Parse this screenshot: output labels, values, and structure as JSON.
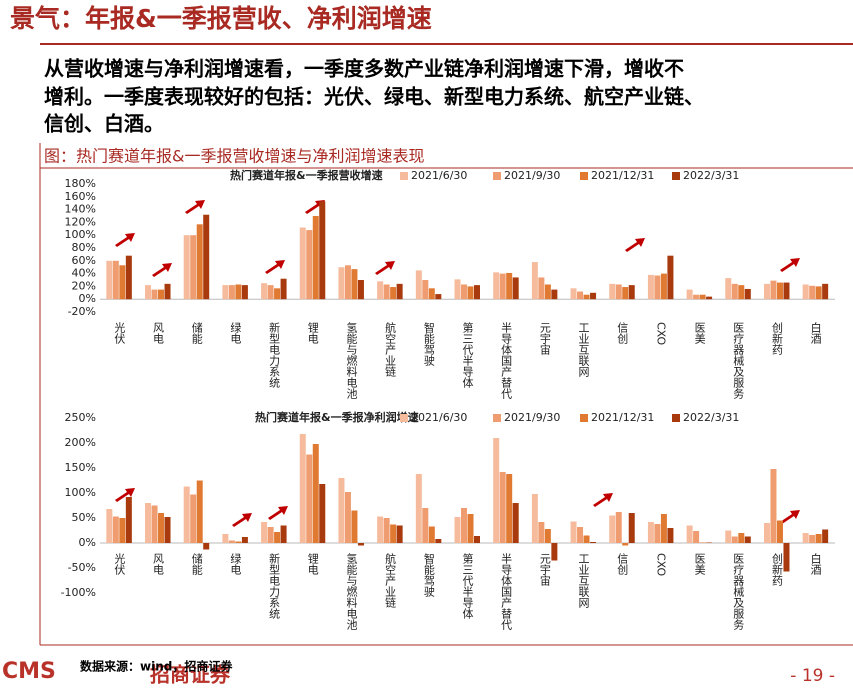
{
  "header": {
    "title": "景气：年报&一季报营收、净利润增速"
  },
  "body": {
    "lines": [
      "从营收增速与净利润增速看，一季度多数产业链净利润增速下滑，增收不",
      "增利。一季度表现较好的包括：光伏、绿电、新型电力系统、航空产业链、",
      "信创、白酒。"
    ]
  },
  "figure": {
    "caption": "图：热门赛道年报&一季报营收增速与净利润增速表现"
  },
  "chart_data": [
    {
      "type": "bar",
      "title": "热门赛道年报&一季报营收增速",
      "categories": [
        "光伏",
        "风电",
        "储能",
        "绿电",
        "新型电力系统",
        "锂电",
        "氢能与燃料电池",
        "航空产业链",
        "智能驾驶",
        "第三代半导体",
        "半导体国产替代",
        "元宇宙",
        "工业互联网",
        "信创",
        "CXO",
        "医美",
        "医疗器械及服务",
        "创新药",
        "白酒"
      ],
      "series": [
        {
          "name": "2021/6/30",
          "color": "#f5bb9c",
          "values": [
            60,
            22,
            100,
            22,
            25,
            112,
            50,
            28,
            45,
            31,
            42,
            58,
            17,
            24,
            38,
            15,
            33,
            24,
            23
          ]
        },
        {
          "name": "2021/9/30",
          "color": "#ef9d70",
          "values": [
            60,
            15,
            100,
            22,
            22,
            108,
            53,
            23,
            30,
            23,
            40,
            34,
            12,
            23,
            37,
            7,
            24,
            29,
            21
          ]
        },
        {
          "name": "2021/12/31",
          "color": "#e07a33",
          "values": [
            53,
            15,
            117,
            23,
            17,
            130,
            47,
            19,
            17,
            20,
            41,
            23,
            7,
            19,
            40,
            7,
            22,
            26,
            20
          ]
        },
        {
          "name": "2022/3/31",
          "color": "#a83a0e",
          "values": [
            68,
            24,
            132,
            22,
            32,
            153,
            30,
            24,
            8,
            22,
            34,
            15,
            10,
            22,
            68,
            4,
            16,
            26,
            24
          ]
        }
      ],
      "ylim": [
        -20,
        180
      ],
      "yticks": [
        {
          "value": -20,
          "label": "-20%"
        },
        {
          "value": 0,
          "label": "0%"
        },
        {
          "value": 20,
          "label": "20%"
        },
        {
          "value": 40,
          "label": "40%"
        },
        {
          "value": 60,
          "label": "60%"
        },
        {
          "value": 80,
          "label": "80%"
        },
        {
          "value": 100,
          "label": "100%"
        },
        {
          "value": 120,
          "label": "120%"
        },
        {
          "value": 140,
          "label": "140%"
        },
        {
          "value": 160,
          "label": "160%"
        },
        {
          "value": 180,
          "label": "180%"
        }
      ],
      "grid": false
    },
    {
      "type": "bar",
      "title": "热门赛道年报&一季报净利润增速",
      "categories": [
        "光伏",
        "风电",
        "储能",
        "绿电",
        "新型电力系统",
        "锂电",
        "氢能与燃料电池",
        "航空产业链",
        "智能驾驶",
        "第三代半导体",
        "半导体国产替代",
        "元宇宙",
        "工业互联网",
        "信创",
        "CXO",
        "医美",
        "医疗器械及服务",
        "创新药",
        "白酒"
      ],
      "series": [
        {
          "name": "2021/6/30",
          "color": "#f5bb9c",
          "values": [
            68,
            80,
            113,
            18,
            42,
            218,
            130,
            53,
            138,
            52,
            210,
            98,
            43,
            55,
            42,
            35,
            25,
            40,
            20
          ]
        },
        {
          "name": "2021/9/30",
          "color": "#ef9d70",
          "values": [
            53,
            75,
            97,
            5,
            32,
            177,
            102,
            50,
            70,
            70,
            142,
            42,
            32,
            62,
            38,
            24,
            13,
            148,
            16
          ]
        },
        {
          "name": "2021/12/31",
          "color": "#e07a33",
          "values": [
            50,
            60,
            125,
            3,
            22,
            198,
            65,
            37,
            33,
            58,
            138,
            28,
            15,
            -5,
            58,
            1,
            20,
            45,
            18
          ]
        },
        {
          "name": "2022/3/31",
          "color": "#a83a0e",
          "values": [
            92,
            52,
            -13,
            12,
            35,
            118,
            -5,
            35,
            8,
            14,
            80,
            -35,
            2,
            60,
            30,
            1,
            13,
            -57,
            27
          ]
        }
      ],
      "ylim": [
        -100,
        250
      ],
      "yticks": [
        {
          "value": -100,
          "label": "-100%"
        },
        {
          "value": -50,
          "label": "-50%"
        },
        {
          "value": 0,
          "label": "0%"
        },
        {
          "value": 50,
          "label": "50%"
        },
        {
          "value": 100,
          "label": "100%"
        },
        {
          "value": 150,
          "label": "150%"
        },
        {
          "value": 200,
          "label": "200%"
        },
        {
          "value": 250,
          "label": "250%"
        }
      ],
      "grid": false
    }
  ],
  "footer": {
    "source": "数据来源：wind，招商证券",
    "page_number": "- 19 -",
    "logo_text": "CMS",
    "logo_name": "招商证券"
  }
}
